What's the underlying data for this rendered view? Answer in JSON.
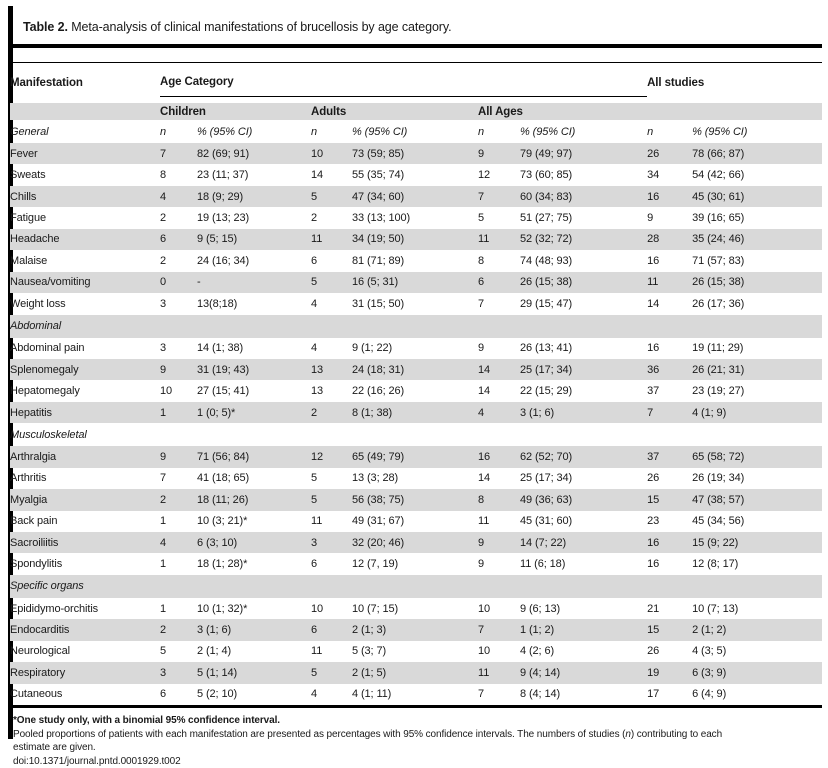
{
  "title": {
    "label": "Table 2.",
    "text": "Meta-analysis of clinical manifestations of brucellosis by age category."
  },
  "table": {
    "header": {
      "manifestation": "Manifestation",
      "age_category": "Age Category",
      "all_studies": "All studies",
      "groups": [
        "Children",
        "Adults",
        "All Ages"
      ],
      "n_label": "n",
      "ci_label": "% (95% CI)"
    },
    "sections": [
      {
        "name": "General",
        "rows": [
          {
            "label": "Fever",
            "cells": [
              "7",
              "82 (69; 91)",
              "10",
              "73 (59; 85)",
              "9",
              "79 (49; 97)",
              "26",
              "78 (66; 87)"
            ]
          },
          {
            "label": "Sweats",
            "cells": [
              "8",
              "23 (11; 37)",
              "14",
              "55 (35; 74)",
              "12",
              "73 (60; 85)",
              "34",
              "54 (42; 66)"
            ]
          },
          {
            "label": "Chills",
            "cells": [
              "4",
              "18 (9; 29)",
              "5",
              "47 (34; 60)",
              "7",
              "60 (34; 83)",
              "16",
              "45 (30; 61)"
            ]
          },
          {
            "label": "Fatigue",
            "cells": [
              "2",
              "19 (13; 23)",
              "2",
              "33 (13; 100)",
              "5",
              "51 (27; 75)",
              "9",
              "39 (16; 65)"
            ]
          },
          {
            "label": "Headache",
            "cells": [
              "6",
              "9 (5; 15)",
              "11",
              "34 (19; 50)",
              "11",
              "52 (32; 72)",
              "28",
              "35 (24; 46)"
            ]
          },
          {
            "label": "Malaise",
            "cells": [
              "2",
              "24 (16; 34)",
              "6",
              "81 (71; 89)",
              "8",
              "74 (48; 93)",
              "16",
              "71 (57; 83)"
            ]
          },
          {
            "label": "Nausea/vomiting",
            "cells": [
              "0",
              "-",
              "5",
              "16 (5; 31)",
              "6",
              "26 (15; 38)",
              "11",
              "26 (15; 38)"
            ]
          },
          {
            "label": "Weight loss",
            "cells": [
              "3",
              "13(8;18)",
              "4",
              "31 (15; 50)",
              "7",
              "29 (15; 47)",
              "14",
              "26 (17; 36)"
            ]
          }
        ]
      },
      {
        "name": "Abdominal",
        "rows": [
          {
            "label": "Abdominal pain",
            "cells": [
              "3",
              "14 (1; 38)",
              "4",
              "9 (1; 22)",
              "9",
              "26 (13; 41)",
              "16",
              "19 (11; 29)"
            ]
          },
          {
            "label": "Splenomegaly",
            "cells": [
              "9",
              "31 (19; 43)",
              "13",
              "24 (18; 31)",
              "14",
              "25 (17; 34)",
              "36",
              "26 (21; 31)"
            ]
          },
          {
            "label": "Hepatomegaly",
            "cells": [
              "10",
              "27 (15; 41)",
              "13",
              "22 (16; 26)",
              "14",
              "22 (15; 29)",
              "37",
              "23 (19; 27)"
            ]
          },
          {
            "label": "Hepatitis",
            "cells": [
              "1",
              "1 (0; 5)*",
              "2",
              "8 (1; 38)",
              "4",
              "3 (1; 6)",
              "7",
              "4 (1; 9)"
            ]
          }
        ]
      },
      {
        "name": "Musculoskeletal",
        "rows": [
          {
            "label": "Arthralgia",
            "cells": [
              "9",
              "71 (56; 84)",
              "12",
              "65 (49; 79)",
              "16",
              "62 (52; 70)",
              "37",
              "65 (58; 72)"
            ]
          },
          {
            "label": "Arthritis",
            "cells": [
              "7",
              "41 (18; 65)",
              "5",
              "13 (3; 28)",
              "14",
              "25 (17; 34)",
              "26",
              "26 (19; 34)"
            ]
          },
          {
            "label": "Myalgia",
            "cells": [
              "2",
              "18 (11; 26)",
              "5",
              "56 (38; 75)",
              "8",
              "49 (36; 63)",
              "15",
              "47 (38; 57)"
            ]
          },
          {
            "label": "Back pain",
            "cells": [
              "1",
              "10 (3; 21)*",
              "11",
              "49 (31; 67)",
              "11",
              "45 (31; 60)",
              "23",
              "45 (34; 56)"
            ]
          },
          {
            "label": "Sacroiliitis",
            "cells": [
              "4",
              "6 (3; 10)",
              "3",
              "32 (20; 46)",
              "9",
              "14 (7; 22)",
              "16",
              "15 (9; 22)"
            ]
          },
          {
            "label": "Spondylitis",
            "cells": [
              "1",
              "18 (1; 28)*",
              "6",
              "12 (7, 19)",
              "9",
              "11 (6; 18)",
              "16",
              "12 (8; 17)"
            ]
          }
        ]
      },
      {
        "name": "Specific organs",
        "rows": [
          {
            "label": "Epididymo-orchitis",
            "cells": [
              "1",
              "10 (1; 32)*",
              "10",
              "10 (7; 15)",
              "10",
              "9 (6; 13)",
              "21",
              "10 (7; 13)"
            ]
          },
          {
            "label": "Endocarditis",
            "cells": [
              "2",
              "3 (1; 6)",
              "6",
              "2 (1; 3)",
              "7",
              "1 (1; 2)",
              "15",
              "2 (1; 2)"
            ]
          },
          {
            "label": "Neurological",
            "cells": [
              "5",
              "2 (1; 4)",
              "11",
              "5 (3; 7)",
              "10",
              "4 (2; 6)",
              "26",
              "4 (3; 5)"
            ]
          },
          {
            "label": "Respiratory",
            "cells": [
              "3",
              "5 (1; 14)",
              "5",
              "2 (1; 5)",
              "11",
              "9 (4; 14)",
              "19",
              "6 (3; 9)"
            ]
          },
          {
            "label": "Cutaneous",
            "cells": [
              "6",
              "5 (2; 10)",
              "4",
              "4 (1; 11)",
              "7",
              "8 (4; 14)",
              "17",
              "6 (4; 9)"
            ]
          }
        ]
      }
    ]
  },
  "footnotes": {
    "star": "*One study only, with a binomial 95% confidence interval.",
    "pooled_before_n": "Pooled proportions of patients with each manifestation are presented as percentages with 95% confidence intervals. The numbers of studies (",
    "pooled_n": "n",
    "pooled_after_n": ") contributing to each",
    "pooled_line2": "estimate are given.",
    "doi": "doi:10.1371/journal.pntd.0001929.t002"
  },
  "colors": {
    "stripe": "#d9d9d9",
    "rule": "#000000",
    "text": "#1a1a1a"
  }
}
